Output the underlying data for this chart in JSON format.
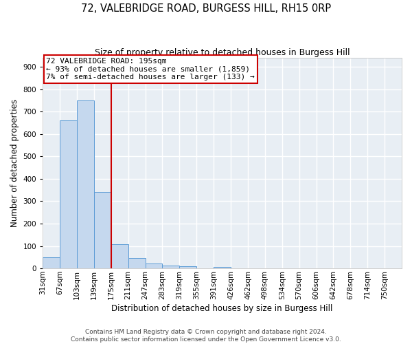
{
  "title": "72, VALEBRIDGE ROAD, BURGESS HILL, RH15 0RP",
  "subtitle": "Size of property relative to detached houses in Burgess Hill",
  "xlabel": "Distribution of detached houses by size in Burgess Hill",
  "ylabel": "Number of detached properties",
  "bin_labels": [
    "31sqm",
    "67sqm",
    "103sqm",
    "139sqm",
    "175sqm",
    "211sqm",
    "247sqm",
    "283sqm",
    "319sqm",
    "355sqm",
    "391sqm",
    "426sqm",
    "462sqm",
    "498sqm",
    "534sqm",
    "570sqm",
    "606sqm",
    "642sqm",
    "678sqm",
    "714sqm",
    "750sqm"
  ],
  "bar_values": [
    50,
    660,
    750,
    340,
    108,
    47,
    22,
    14,
    9,
    0,
    7,
    0,
    0,
    0,
    0,
    0,
    0,
    0,
    0,
    0,
    0
  ],
  "bar_color": "#C5D8EE",
  "bar_edge_color": "#5B9BD5",
  "background_color": "#E8EEF4",
  "grid_color": "#FFFFFF",
  "annotation_line1": "72 VALEBRIDGE ROAD: 195sqm",
  "annotation_line2": "← 93% of detached houses are smaller (1,859)",
  "annotation_line3": "7% of semi-detached houses are larger (133) →",
  "vline_color": "#CC0000",
  "vline_x": 4.0,
  "annotation_box_color": "#CC0000",
  "footer_line1": "Contains HM Land Registry data © Crown copyright and database right 2024.",
  "footer_line2": "Contains public sector information licensed under the Open Government Licence v3.0.",
  "ylim": [
    0,
    940
  ],
  "yticks": [
    0,
    100,
    200,
    300,
    400,
    500,
    600,
    700,
    800,
    900
  ],
  "title_fontsize": 10.5,
  "subtitle_fontsize": 9,
  "axis_label_fontsize": 8.5,
  "tick_fontsize": 7.5,
  "annotation_fontsize": 8,
  "footer_fontsize": 6.5
}
